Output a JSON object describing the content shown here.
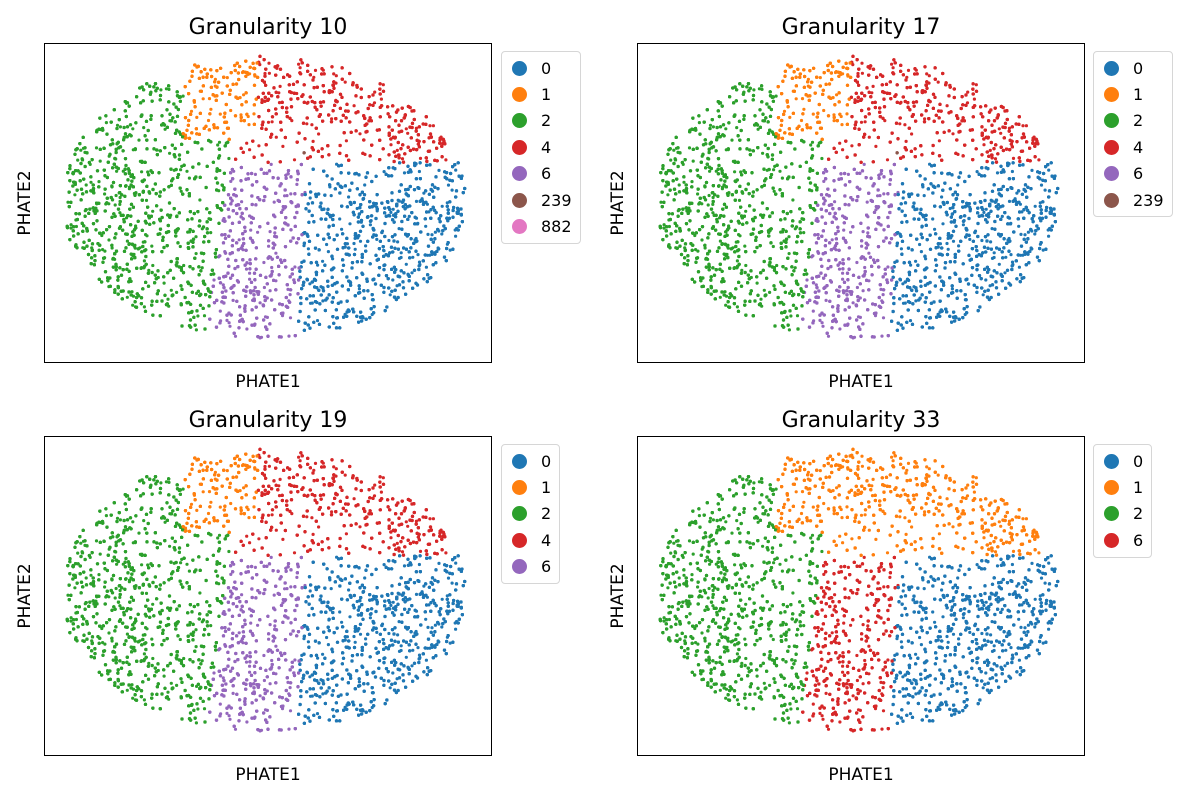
{
  "figure": {
    "palette": {
      "0": "#1f77b4",
      "1": "#ff7f0e",
      "2": "#2ca02c",
      "4": "#d62728",
      "6": "#9467bd",
      "239": "#8c564b",
      "882": "#e377c2"
    }
  },
  "chart_data": [
    {
      "type": "scatter",
      "title": "Granularity 10",
      "xlabel": "PHATE1",
      "ylabel": "PHATE2",
      "xticks": [],
      "yticks": [],
      "xlim": [
        -1,
        1
      ],
      "ylim": [
        -1,
        1
      ],
      "legend": {
        "placement": "outside-right",
        "entries": [
          "0",
          "1",
          "2",
          "4",
          "6",
          "239",
          "882"
        ]
      },
      "series": [
        {
          "name": "0",
          "color": "#1f77b4",
          "region": {
            "x": [
              0.05,
              0.98
            ],
            "y": [
              -0.95,
              0.32
            ]
          },
          "approx_points": 1900
        },
        {
          "name": "1",
          "color": "#ff7f0e",
          "region": {
            "x": [
              -0.38,
              -0.05
            ],
            "y": [
              0.42,
              0.95
            ]
          },
          "approx_points": 400
        },
        {
          "name": "2",
          "color": "#2ca02c",
          "region": {
            "x": [
              -1.0,
              -0.22
            ],
            "y": [
              -0.98,
              0.75
            ]
          },
          "approx_points": 2300
        },
        {
          "name": "4",
          "color": "#d62728",
          "region": {
            "x": [
              -0.05,
              0.9
            ],
            "y": [
              0.25,
              1.0
            ]
          },
          "approx_points": 1400
        },
        {
          "name": "6",
          "color": "#9467bd",
          "region": {
            "x": [
              -0.3,
              0.2
            ],
            "y": [
              -0.98,
              0.25
            ]
          },
          "approx_points": 1300
        },
        {
          "name": "239",
          "color": "#8c564b",
          "region": {
            "x": [
              0.08,
              0.2
            ],
            "y": [
              0.3,
              0.36
            ]
          },
          "approx_points": 4
        },
        {
          "name": "882",
          "color": "#e377c2",
          "region": {
            "x": [
              0.12,
              0.16
            ],
            "y": [
              0.31,
              0.34
            ]
          },
          "approx_points": 1
        }
      ]
    },
    {
      "type": "scatter",
      "title": "Granularity 17",
      "xlabel": "PHATE1",
      "ylabel": "PHATE2",
      "xticks": [],
      "yticks": [],
      "xlim": [
        -1,
        1
      ],
      "ylim": [
        -1,
        1
      ],
      "legend": {
        "placement": "outside-right",
        "entries": [
          "0",
          "1",
          "2",
          "4",
          "6",
          "239"
        ]
      },
      "series": [
        {
          "name": "0",
          "color": "#1f77b4",
          "region": {
            "x": [
              0.05,
              0.98
            ],
            "y": [
              -0.95,
              0.32
            ]
          },
          "approx_points": 1900
        },
        {
          "name": "1",
          "color": "#ff7f0e",
          "region": {
            "x": [
              -0.38,
              -0.05
            ],
            "y": [
              0.42,
              0.95
            ]
          },
          "approx_points": 400
        },
        {
          "name": "2",
          "color": "#2ca02c",
          "region": {
            "x": [
              -1.0,
              -0.22
            ],
            "y": [
              -0.98,
              0.75
            ]
          },
          "approx_points": 2300
        },
        {
          "name": "4",
          "color": "#d62728",
          "region": {
            "x": [
              -0.05,
              0.9
            ],
            "y": [
              0.25,
              1.0
            ]
          },
          "approx_points": 1400
        },
        {
          "name": "6",
          "color": "#9467bd",
          "region": {
            "x": [
              -0.3,
              0.2
            ],
            "y": [
              -0.98,
              0.25
            ]
          },
          "approx_points": 1300
        },
        {
          "name": "239",
          "color": "#8c564b",
          "region": {
            "x": [
              0.08,
              0.2
            ],
            "y": [
              0.3,
              0.36
            ]
          },
          "approx_points": 4
        }
      ]
    },
    {
      "type": "scatter",
      "title": "Granularity 19",
      "xlabel": "PHATE1",
      "ylabel": "PHATE2",
      "xticks": [],
      "yticks": [],
      "xlim": [
        -1,
        1
      ],
      "ylim": [
        -1,
        1
      ],
      "legend": {
        "placement": "outside-right",
        "entries": [
          "0",
          "1",
          "2",
          "4",
          "6"
        ]
      },
      "series": [
        {
          "name": "0",
          "color": "#1f77b4",
          "region": {
            "x": [
              0.05,
              0.98
            ],
            "y": [
              -0.95,
              0.32
            ]
          },
          "approx_points": 1900
        },
        {
          "name": "1",
          "color": "#ff7f0e",
          "region": {
            "x": [
              -0.38,
              -0.05
            ],
            "y": [
              0.42,
              0.95
            ]
          },
          "approx_points": 400
        },
        {
          "name": "2",
          "color": "#2ca02c",
          "region": {
            "x": [
              -1.0,
              -0.22
            ],
            "y": [
              -0.98,
              0.75
            ]
          },
          "approx_points": 2300
        },
        {
          "name": "4",
          "color": "#d62728",
          "region": {
            "x": [
              -0.05,
              0.9
            ],
            "y": [
              0.25,
              1.0
            ]
          },
          "approx_points": 1400
        },
        {
          "name": "6",
          "color": "#9467bd",
          "region": {
            "x": [
              -0.3,
              0.2
            ],
            "y": [
              -0.98,
              0.25
            ]
          },
          "approx_points": 1300
        }
      ]
    },
    {
      "type": "scatter",
      "title": "Granularity 33",
      "xlabel": "PHATE1",
      "ylabel": "PHATE2",
      "xticks": [],
      "yticks": [],
      "xlim": [
        -1,
        1
      ],
      "ylim": [
        -1,
        1
      ],
      "legend": {
        "placement": "outside-right",
        "entries": [
          "0",
          "1",
          "2",
          "6"
        ]
      },
      "series": [
        {
          "name": "0",
          "color": "#1f77b4",
          "region": {
            "x": [
              0.05,
              0.98
            ],
            "y": [
              -0.95,
              0.32
            ]
          },
          "approx_points": 1900
        },
        {
          "name": "1",
          "color": "#ff7f0e",
          "region": {
            "x": [
              -0.38,
              0.9
            ],
            "y": [
              0.25,
              1.0
            ]
          },
          "approx_points": 1800
        },
        {
          "name": "2",
          "color": "#2ca02c",
          "region": {
            "x": [
              -1.0,
              -0.22
            ],
            "y": [
              -0.98,
              0.75
            ]
          },
          "approx_points": 2300
        },
        {
          "name": "6",
          "color": "#d62728",
          "region": {
            "x": [
              -0.3,
              0.2
            ],
            "y": [
              -0.98,
              0.25
            ]
          },
          "approx_points": 1300
        }
      ]
    }
  ]
}
